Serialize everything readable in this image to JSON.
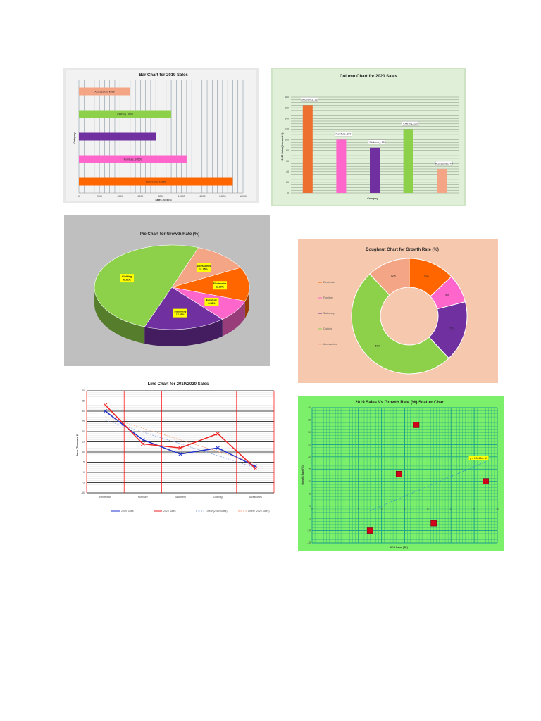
{
  "charts": {
    "bar": {
      "title": "Bar Chart for 2019 Sales",
      "xlabel": "Sales 2019 ($)",
      "ylabel": "Category",
      "xticks": [
        "0",
        "2000",
        "4000",
        "6000",
        "8000",
        "10000",
        "12000",
        "14000",
        "16000"
      ],
      "xlim": [
        0,
        16000
      ],
      "categories": [
        "Accessories",
        "Clothing",
        "Stationery",
        "Furniture",
        "Electronics"
      ],
      "values": [
        5000,
        9000,
        7500,
        10500,
        15000
      ],
      "labels": [
        "Accessories, 5000",
        "Clothing, 9000",
        "",
        "Furniture, 10500",
        "Electronics, 15000"
      ],
      "colors": [
        "#f4a585",
        "#8dd04a",
        "#7030a0",
        "#ff66cc",
        "#ff6600"
      ]
    },
    "column": {
      "title": "Column Chart for 2020 Sales",
      "ylabel": "2020 Sales(thousand $)",
      "xlabel": "Category",
      "yticks": [
        "0",
        "20",
        "40",
        "60",
        "80",
        "100",
        "120",
        "140",
        "160",
        "180"
      ],
      "ylim": [
        0,
        180
      ],
      "categories": [
        "Electronics",
        "Furniture",
        "Stationery",
        "Clothing",
        "Accessories"
      ],
      "values": [
        165,
        100,
        85,
        120,
        45
      ],
      "labels": [
        "Electronics, 165",
        "Furniture, 100",
        "Stationery, 85",
        "Clothing, 120",
        "Accessories, 45"
      ],
      "colors": [
        "#ed7030",
        "#ff66cc",
        "#7030a0",
        "#8dd04a",
        "#f4a585"
      ]
    },
    "pie": {
      "title": "Pie Chart for Growth Rate (%)",
      "categories": [
        "Accessories",
        "Electronics",
        "Furniture",
        "Stationery",
        "Clothing"
      ],
      "values": [
        11.76,
        12.99,
        8.38,
        17.05,
        49.81
      ],
      "labels": [
        "Accessories\n11.76%",
        "Electronics\n12.99%",
        "Furniture\n8.38%",
        "Stationery\n17.05%",
        "Clothing\n49.81%"
      ],
      "colors": [
        "#f4a585",
        "#ff6600",
        "#ff66cc",
        "#7030a0",
        "#8dd04a"
      ]
    },
    "doughnut": {
      "title": "Doughnut Chart for Growth Rate (%)",
      "categories": [
        "Electronics",
        "Furniture",
        "Stationery",
        "Clothing",
        "Accessories"
      ],
      "values": [
        13,
        8,
        17,
        50,
        12
      ],
      "labels": [
        "13%",
        "8%",
        "17%",
        "50%",
        "12%"
      ],
      "legend": [
        "Electronics",
        "Furniture",
        "Stationery",
        "Clothing",
        "Accessories"
      ],
      "colors": [
        "#ff6600",
        "#ff66cc",
        "#7030a0",
        "#8dd04a",
        "#f4a585"
      ]
    },
    "line": {
      "title": "Line Chart for 2019/2020 Sales",
      "ylabel": "Sales (Thousand $)",
      "categories": [
        "Electronics",
        "Furniture",
        "Stationery",
        "Clothing",
        "Accessories"
      ],
      "yticks": [
        "-10",
        "-5",
        "0",
        "5",
        "10",
        "15",
        "20",
        "25",
        "30",
        "35",
        "40"
      ],
      "ylim": [
        -10,
        40
      ],
      "series": [
        {
          "name": "2019 Sales",
          "values": [
            30,
            16,
            9,
            12,
            3
          ],
          "color": "#2233cc"
        },
        {
          "name": "2020 Sales",
          "values": [
            33,
            14,
            12,
            19,
            2
          ],
          "color": "#ee2222"
        }
      ],
      "legend": [
        "2019 Sales",
        "2020 Sales",
        "Linear (2019 Sales)",
        "Linear (2020 Sales)"
      ]
    },
    "scatter": {
      "title": "2019 Sales Vs Growth Rate (%) Scatter Chart",
      "xlabel": "2019 Sales ($K)",
      "ylabel": "Growth Rate (%)",
      "xticks": [
        "0",
        "2",
        "4",
        "6",
        "8",
        "10",
        "12",
        "14",
        "16"
      ],
      "yticks": [
        "-15",
        "-10",
        "-5",
        "0",
        "5",
        "10",
        "15",
        "20",
        "25",
        "30",
        "35",
        "40"
      ],
      "xlim": [
        0,
        16
      ],
      "ylim": [
        -15,
        40
      ],
      "points": [
        [
          5,
          -10
        ],
        [
          7.5,
          13
        ],
        [
          9,
          33
        ],
        [
          10.5,
          -7
        ],
        [
          15,
          10
        ]
      ],
      "trendline": [
        [
          5,
          -2
        ],
        [
          15,
          18
        ]
      ],
      "equation": "y = 0.0016x - 13"
    }
  }
}
